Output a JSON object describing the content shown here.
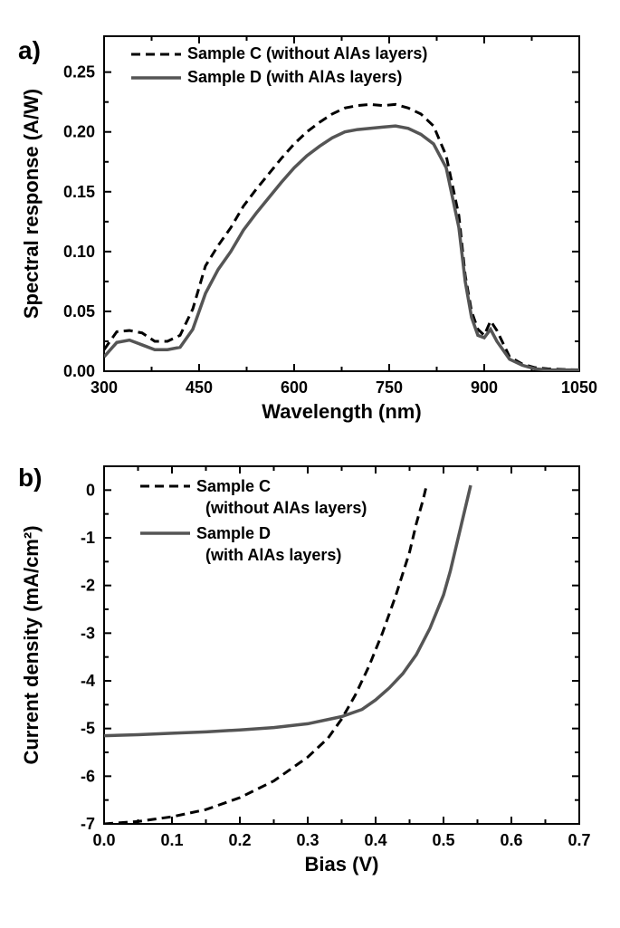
{
  "panelA": {
    "label": "a)",
    "type": "line",
    "xlabel": "Wavelength (nm)",
    "ylabel": "Spectral response (A/W)",
    "xlim": [
      300,
      1050
    ],
    "ylim": [
      0.0,
      0.28
    ],
    "xticks": [
      300,
      450,
      600,
      750,
      900,
      1050
    ],
    "yticks": [
      0.0,
      0.05,
      0.1,
      0.15,
      0.2,
      0.25
    ],
    "ytick_labels": [
      "0.00",
      "0.05",
      "0.10",
      "0.15",
      "0.20",
      "0.25"
    ],
    "background_color": "#ffffff",
    "grid": false,
    "legend_position": "top-inside",
    "series": [
      {
        "name": "Sample C (without AlAs layers)",
        "style": "dashed",
        "color": "#000000",
        "linewidth": 3,
        "data": [
          [
            300,
            0.018
          ],
          [
            320,
            0.033
          ],
          [
            340,
            0.034
          ],
          [
            360,
            0.032
          ],
          [
            380,
            0.025
          ],
          [
            400,
            0.025
          ],
          [
            420,
            0.03
          ],
          [
            440,
            0.052
          ],
          [
            460,
            0.088
          ],
          [
            480,
            0.105
          ],
          [
            500,
            0.12
          ],
          [
            520,
            0.138
          ],
          [
            540,
            0.152
          ],
          [
            560,
            0.165
          ],
          [
            580,
            0.178
          ],
          [
            600,
            0.19
          ],
          [
            620,
            0.2
          ],
          [
            640,
            0.208
          ],
          [
            660,
            0.215
          ],
          [
            680,
            0.22
          ],
          [
            700,
            0.222
          ],
          [
            720,
            0.223
          ],
          [
            740,
            0.222
          ],
          [
            760,
            0.223
          ],
          [
            780,
            0.22
          ],
          [
            800,
            0.215
          ],
          [
            820,
            0.205
          ],
          [
            840,
            0.18
          ],
          [
            860,
            0.13
          ],
          [
            870,
            0.08
          ],
          [
            880,
            0.05
          ],
          [
            890,
            0.035
          ],
          [
            900,
            0.03
          ],
          [
            910,
            0.042
          ],
          [
            920,
            0.034
          ],
          [
            940,
            0.012
          ],
          [
            960,
            0.006
          ],
          [
            980,
            0.003
          ],
          [
            1000,
            0.002
          ],
          [
            1050,
            0.001
          ]
        ]
      },
      {
        "name": "Sample D (with AlAs layers)",
        "style": "solid",
        "color": "#555555",
        "linewidth": 3.5,
        "data": [
          [
            300,
            0.012
          ],
          [
            320,
            0.024
          ],
          [
            340,
            0.026
          ],
          [
            360,
            0.022
          ],
          [
            380,
            0.018
          ],
          [
            400,
            0.018
          ],
          [
            420,
            0.02
          ],
          [
            440,
            0.035
          ],
          [
            460,
            0.065
          ],
          [
            480,
            0.085
          ],
          [
            500,
            0.1
          ],
          [
            520,
            0.118
          ],
          [
            540,
            0.132
          ],
          [
            560,
            0.145
          ],
          [
            580,
            0.158
          ],
          [
            600,
            0.17
          ],
          [
            620,
            0.18
          ],
          [
            640,
            0.188
          ],
          [
            660,
            0.195
          ],
          [
            680,
            0.2
          ],
          [
            700,
            0.202
          ],
          [
            720,
            0.203
          ],
          [
            740,
            0.204
          ],
          [
            760,
            0.205
          ],
          [
            780,
            0.203
          ],
          [
            800,
            0.198
          ],
          [
            820,
            0.19
          ],
          [
            840,
            0.17
          ],
          [
            860,
            0.12
          ],
          [
            870,
            0.075
          ],
          [
            880,
            0.045
          ],
          [
            890,
            0.03
          ],
          [
            900,
            0.028
          ],
          [
            910,
            0.035
          ],
          [
            920,
            0.025
          ],
          [
            940,
            0.01
          ],
          [
            960,
            0.005
          ],
          [
            980,
            0.002
          ],
          [
            1000,
            0.001
          ],
          [
            1050,
            0.001
          ]
        ]
      }
    ]
  },
  "panelB": {
    "label": "b)",
    "type": "line",
    "xlabel": "Bias (V)",
    "ylabel": "Current density (mA/cm²)",
    "xlim": [
      0.0,
      0.7
    ],
    "ylim": [
      -7,
      0.5
    ],
    "xticks": [
      0.0,
      0.1,
      0.2,
      0.3,
      0.4,
      0.5,
      0.6,
      0.7
    ],
    "xtick_labels": [
      "0.0",
      "0.1",
      "0.2",
      "0.3",
      "0.4",
      "0.5",
      "0.6",
      "0.7"
    ],
    "yticks": [
      -7,
      -6,
      -5,
      -4,
      -3,
      -2,
      -1,
      0
    ],
    "background_color": "#ffffff",
    "grid": false,
    "legend_position": "top-inside",
    "series": [
      {
        "name": "Sample C",
        "subtitle": "(without AlAs layers)",
        "style": "dashed",
        "color": "#000000",
        "linewidth": 3,
        "data": [
          [
            0.0,
            -7.0
          ],
          [
            0.05,
            -6.95
          ],
          [
            0.1,
            -6.85
          ],
          [
            0.15,
            -6.7
          ],
          [
            0.2,
            -6.45
          ],
          [
            0.25,
            -6.1
          ],
          [
            0.3,
            -5.6
          ],
          [
            0.33,
            -5.2
          ],
          [
            0.35,
            -4.8
          ],
          [
            0.37,
            -4.3
          ],
          [
            0.39,
            -3.7
          ],
          [
            0.41,
            -3.0
          ],
          [
            0.43,
            -2.2
          ],
          [
            0.45,
            -1.3
          ],
          [
            0.46,
            -0.7
          ],
          [
            0.47,
            -0.2
          ],
          [
            0.475,
            0.1
          ]
        ]
      },
      {
        "name": "Sample D",
        "subtitle": "(with AlAs layers)",
        "style": "solid",
        "color": "#555555",
        "linewidth": 3.5,
        "data": [
          [
            0.0,
            -5.15
          ],
          [
            0.05,
            -5.13
          ],
          [
            0.1,
            -5.1
          ],
          [
            0.15,
            -5.07
          ],
          [
            0.2,
            -5.03
          ],
          [
            0.25,
            -4.98
          ],
          [
            0.3,
            -4.9
          ],
          [
            0.35,
            -4.75
          ],
          [
            0.38,
            -4.6
          ],
          [
            0.4,
            -4.4
          ],
          [
            0.42,
            -4.15
          ],
          [
            0.44,
            -3.85
          ],
          [
            0.46,
            -3.45
          ],
          [
            0.48,
            -2.9
          ],
          [
            0.5,
            -2.2
          ],
          [
            0.51,
            -1.7
          ],
          [
            0.52,
            -1.1
          ],
          [
            0.53,
            -0.5
          ],
          [
            0.54,
            0.1
          ]
        ]
      }
    ]
  },
  "fonts": {
    "panel_label_size": 28,
    "axis_title_size": 22,
    "tick_label_size": 18,
    "legend_size": 18
  },
  "colors": {
    "axis": "#000000",
    "background": "#ffffff",
    "dashed_series": "#000000",
    "solid_series": "#555555"
  }
}
